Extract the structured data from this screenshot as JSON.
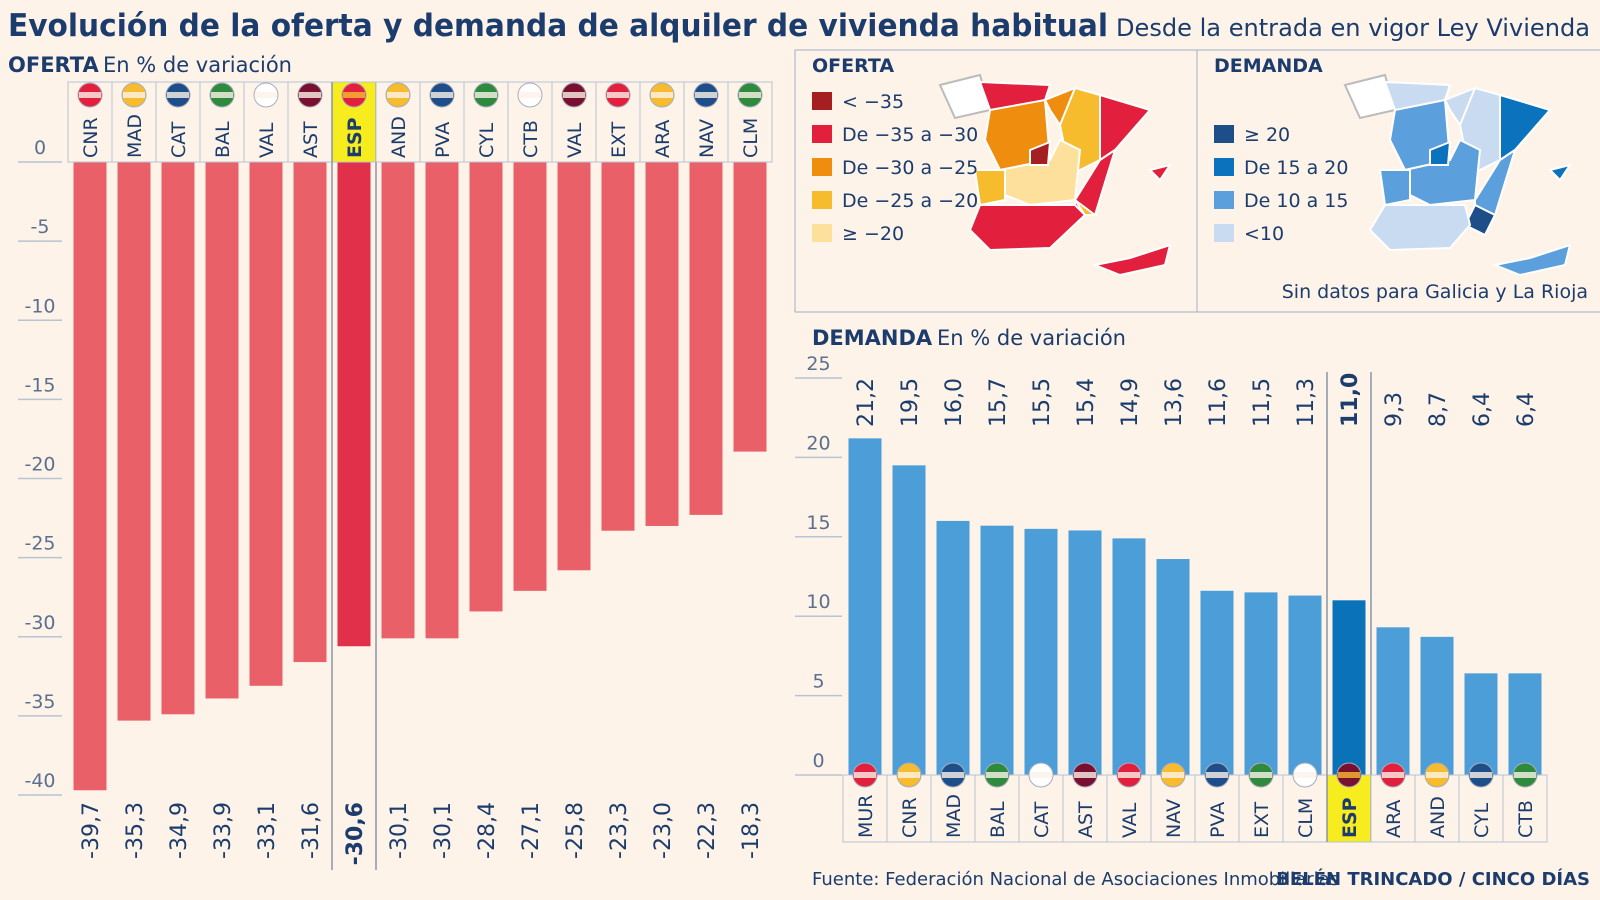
{
  "title": "Evolución de la oferta y demanda de alquiler de vivienda habitual",
  "subtitle": "Desde la entrada en vigor Ley Vivienda",
  "maps": [
    {
      "title": "OFERTA",
      "legend": [
        {
          "label": "< −35",
          "color": "#a51f22"
        },
        {
          "label": "De −35 a −30",
          "color": "#e2203d"
        },
        {
          "label": "De −30 a −25",
          "color": "#ef8d0e"
        },
        {
          "label": "De −25 a −20",
          "color": "#f7bc2e"
        },
        {
          "label": "≥ −20",
          "color": "#fde09c"
        }
      ]
    },
    {
      "title": "DEMANDA",
      "legend": [
        {
          "label": "≥ 20",
          "color": "#1d4e89"
        },
        {
          "label": "De 15 a 20",
          "color": "#0b72bd"
        },
        {
          "label": "De 10 a 15",
          "color": "#5b9fdc"
        },
        {
          "label": "<10",
          "color": "#c9dbf0"
        }
      ],
      "note": "Sin datos para Galicia y La Rioja"
    }
  ],
  "chart_data": [
    {
      "type": "bar",
      "title": "OFERTA",
      "subtitle": "En % de variación",
      "categories": [
        "CNR",
        "MAD",
        "CAT",
        "BAL",
        "VAL",
        "AST",
        "ESP",
        "AND",
        "PVA",
        "CYL",
        "CTB",
        "VAL",
        "EXT",
        "ARA",
        "NAV",
        "CLM"
      ],
      "values": [
        -39.7,
        -35.3,
        -34.9,
        -33.9,
        -33.1,
        -31.6,
        -30.6,
        -30.1,
        -30.1,
        -28.4,
        -27.1,
        -25.8,
        -23.3,
        -23.0,
        -22.3,
        -18.3
      ],
      "value_labels": [
        "-39,7",
        "-35,3",
        "-34,9",
        "-33,9",
        "-33,1",
        "-31,6",
        "-30,6",
        "-30,1",
        "-30,1",
        "-28,4",
        "-27,1",
        "-25,8",
        "-23,3",
        "-23,0",
        "-22,3",
        "-18,3"
      ],
      "color": "#ea6068",
      "highlight": "ESP",
      "highlight_color": "#e0304a",
      "ylim": [
        -40,
        0
      ],
      "yticks": [
        0,
        -5,
        -10,
        -15,
        -20,
        -25,
        -30,
        -35,
        -40
      ]
    },
    {
      "type": "bar",
      "title": "DEMANDA",
      "subtitle": "En % de variación",
      "categories": [
        "MUR",
        "CNR",
        "MAD",
        "BAL",
        "CAT",
        "AST",
        "VAL",
        "NAV",
        "PVA",
        "EXT",
        "CLM",
        "ESP",
        "ARA",
        "AND",
        "CYL",
        "CTB"
      ],
      "values": [
        21.2,
        19.5,
        16.0,
        15.7,
        15.5,
        15.4,
        14.9,
        13.6,
        11.6,
        11.5,
        11.3,
        11.0,
        9.3,
        8.7,
        6.4,
        6.4
      ],
      "value_labels": [
        "21,2",
        "19,5",
        "16,0",
        "15,7",
        "15,5",
        "15,4",
        "14,9",
        "13,6",
        "11,6",
        "11,5",
        "11,3",
        "11,0",
        "9,3",
        "8,7",
        "6,4",
        "6,4"
      ],
      "color": "#4c9ed9",
      "highlight": "ESP",
      "highlight_color": "#0a72b8",
      "ylim": [
        0,
        25
      ],
      "yticks": [
        0,
        5,
        10,
        15,
        20,
        25
      ]
    }
  ],
  "source": "Fuente: Federación Nacional de Asociaciones Inmobiliarias",
  "credit": "BELÉN TRINCADO / CINCO DÍAS"
}
